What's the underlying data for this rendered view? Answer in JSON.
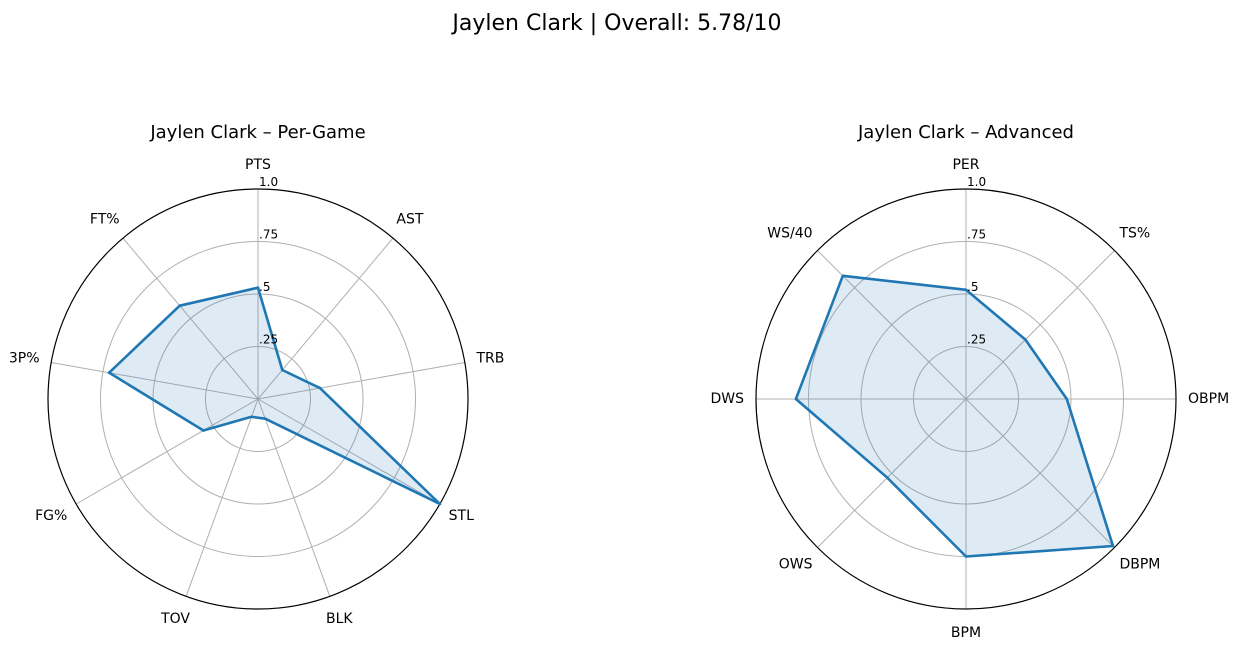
{
  "suptitle": "Jaylen Clark | Overall: 5.78/10",
  "colors": {
    "line": "#1f77b4",
    "fill": "#1f77b4",
    "grid": "#b0b0b0",
    "frame": "#000000"
  },
  "chart_data": [
    {
      "type": "radar",
      "title": "Jaylen Clark – Per-Game",
      "categories": [
        "PTS",
        "AST",
        "TRB",
        "STL",
        "BLK",
        "TOV",
        "FG%",
        "3P%",
        "FT%"
      ],
      "values": [
        0.53,
        0.18,
        0.3,
        1.0,
        0.1,
        0.09,
        0.3,
        0.72,
        0.58
      ],
      "rlim": [
        0,
        1
      ],
      "rticks": [
        0.25,
        0.5,
        0.75,
        1.0
      ],
      "rtick_labels": [
        ".25",
        ".5",
        ".75",
        "1.0"
      ],
      "grid": true
    },
    {
      "type": "radar",
      "title": "Jaylen Clark – Advanced",
      "categories": [
        "PER",
        "TS%",
        "OBPM",
        "DBPM",
        "BPM",
        "OWS",
        "DWS",
        "WS/40"
      ],
      "values": [
        0.52,
        0.4,
        0.48,
        0.99,
        0.75,
        0.53,
        0.81,
        0.83
      ],
      "rlim": [
        0,
        1
      ],
      "rticks": [
        0.25,
        0.5,
        0.75,
        1.0
      ],
      "rtick_labels": [
        ".25",
        ".5",
        ".75",
        "1.0"
      ],
      "grid": true
    }
  ]
}
